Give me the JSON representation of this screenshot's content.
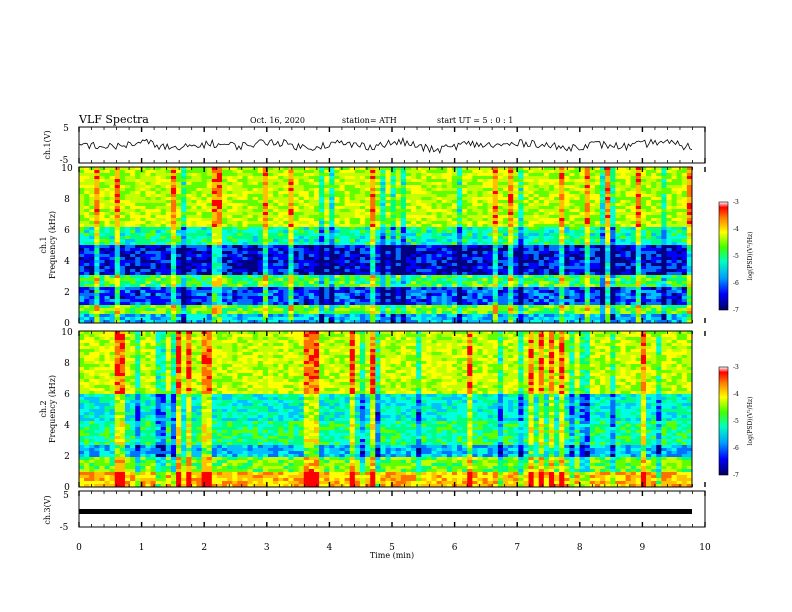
{
  "header": {
    "title": "VLF Spectra",
    "date": "Oct. 16, 2020",
    "station": "station= ATH",
    "start": "start  UT  =   5  :  0  :  1"
  },
  "chart_data": [
    {
      "type": "line",
      "ylabel": "ch.1(V)",
      "ylim": [
        -5,
        5
      ],
      "yticks": [
        "5",
        "-5"
      ],
      "series": [
        {
          "values": [
            0.2,
            -0.6,
            0.8,
            -1.2,
            0.4,
            -0.3,
            1.1,
            -0.8,
            0.5,
            -0.4,
            0.9,
            -1.5,
            0.3,
            -0.2,
            0.7,
            -0.9,
            0.2,
            -0.5,
            1.0,
            -0.7
          ]
        }
      ]
    },
    {
      "type": "heatmap",
      "ylabel": "Frequency (kHz)",
      "chlabel": "ch.1",
      "ylim": [
        0,
        10
      ],
      "yticks": [
        "0",
        "2",
        "4",
        "6",
        "8",
        "10"
      ],
      "colorbar": {
        "label": "log(PSD)(V²/Hz)",
        "ticks": [
          "-3",
          "-4",
          "-5",
          "-6",
          "-7"
        ],
        "range": [
          -7,
          -3
        ]
      },
      "colors": [
        "#000080",
        "#0000ff",
        "#00a0ff",
        "#00ffff",
        "#00ff80",
        "#80ff00",
        "#ffff00",
        "#ff8000",
        "#ff0000",
        "#c00000"
      ]
    },
    {
      "type": "heatmap",
      "ylabel": "Frequency (kHz)",
      "chlabel": "ch.2",
      "ylim": [
        0,
        10
      ],
      "yticks": [
        "0",
        "2",
        "4",
        "6",
        "8",
        "10"
      ],
      "colorbar": {
        "label": "log(PSD)(V²/Hz)",
        "ticks": [
          "-3",
          "-4",
          "-5",
          "-6",
          "-7"
        ],
        "range": [
          -7,
          -3
        ]
      }
    },
    {
      "type": "line",
      "ylabel": "ch.3(V)",
      "ylim": [
        -5,
        5
      ],
      "yticks": [
        "5",
        "-5"
      ],
      "series": [
        {
          "values": [
            -1,
            -1,
            -1,
            -1,
            -1,
            -1,
            -1,
            -1,
            -1,
            -1
          ]
        }
      ]
    }
  ],
  "xaxis": {
    "label": "Time  (min)",
    "xlim": [
      0,
      10
    ],
    "ticks": [
      "0",
      "1",
      "2",
      "3",
      "4",
      "5",
      "6",
      "7",
      "8",
      "9",
      "10"
    ]
  }
}
